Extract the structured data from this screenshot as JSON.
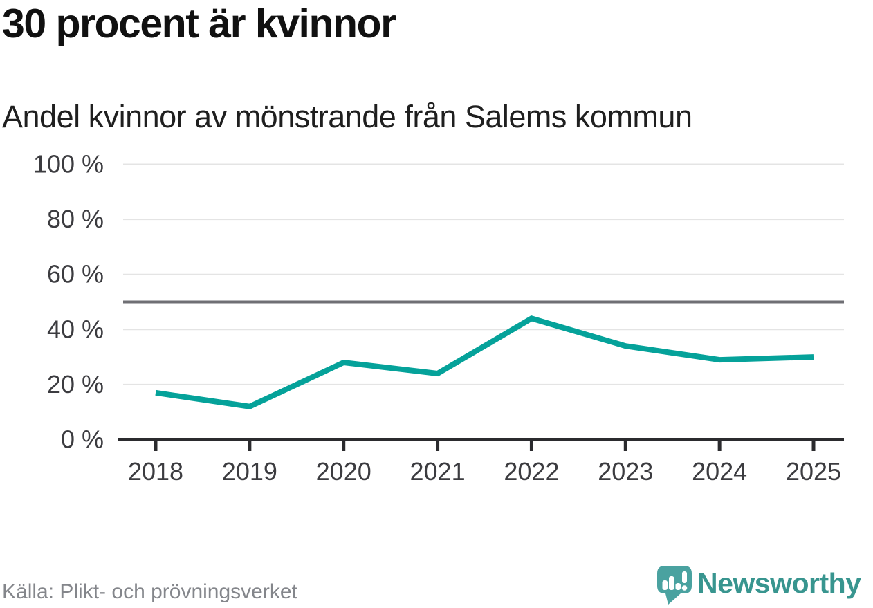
{
  "header": {
    "title": "30 procent är kvinnor",
    "subtitle": "Andel kvinnor av mönstrande från Salems kommun"
  },
  "chart_data": {
    "type": "line",
    "title": "30 procent är kvinnor",
    "subtitle": "Andel kvinnor av mönstrande från Salems kommun",
    "x": [
      "2018",
      "2019",
      "2020",
      "2021",
      "2022",
      "2023",
      "2024",
      "2025"
    ],
    "series": [
      {
        "name": "Andel kvinnor av mönstrande",
        "values": [
          17,
          12,
          28,
          24,
          44,
          34,
          29,
          30
        ]
      }
    ],
    "unit": "%",
    "ylim": [
      0,
      100
    ],
    "yticks": [
      {
        "value": 0,
        "label": "0 %"
      },
      {
        "value": 20,
        "label": "20 %"
      },
      {
        "value": 40,
        "label": "40 %"
      },
      {
        "value": 60,
        "label": "60 %"
      },
      {
        "value": 80,
        "label": "80 %"
      },
      {
        "value": 100,
        "label": "100 %"
      }
    ],
    "reference_line": {
      "value": 50
    },
    "grid": true,
    "legend": "none"
  },
  "footer": {
    "source": "Källa: Plikt- och prövningsverket",
    "brand": "Newsworthy",
    "logo_icon": "newsworthy-speech-bubble-bar-chart"
  },
  "colors": {
    "line": "#05a29a",
    "reference_line": "#6f6f74",
    "grid": "#e4e4e4",
    "axis": "#2b2b2e",
    "tick_label": "#3c3c40",
    "title": "#111111",
    "subtitle": "#1f1f1f",
    "source_text": "#84868b",
    "brand_text": "#38958f",
    "logo_bg": "#4aa2a0",
    "logo_glyph": "#ffffff"
  }
}
